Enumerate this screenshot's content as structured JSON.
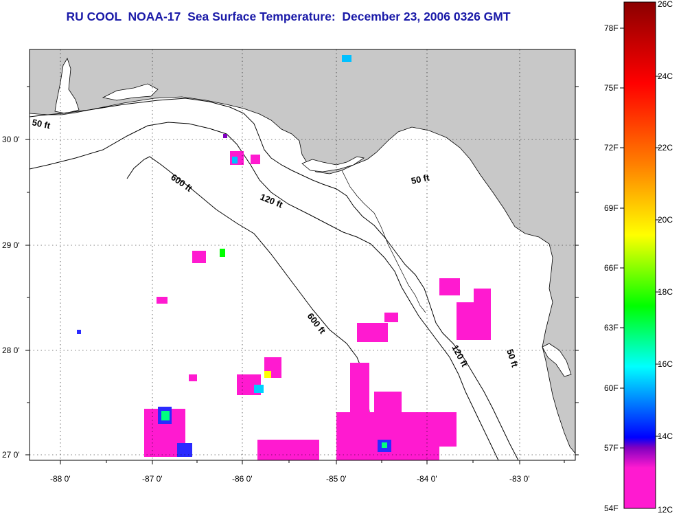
{
  "title": "RU COOL  NOAA-17  Sea Surface Temperature:  December 23, 2006 0326 GMT",
  "map": {
    "lon_ticks": [
      "-88 0'",
      "-87 0'",
      "-86 0'",
      "-85 0'",
      "-84 0'",
      "-83 0'"
    ],
    "lat_ticks": [
      "30 0'",
      "29 0'",
      "28 0'",
      "27 0'"
    ],
    "contour_labels": {
      "c50_west": "50 ft",
      "c50_east": "50 ft",
      "c50_south": "50 ft",
      "c120_north": "120 ft",
      "c120_south": "120 ft",
      "c600_north": "600 ft",
      "c600_south": "600 ft"
    },
    "land_color": "#c8c8c8",
    "water_color": "#ffffff"
  },
  "colorbar": {
    "fahrenheit_labels": [
      "78F",
      "75F",
      "72F",
      "69F",
      "66F",
      "63F",
      "60F",
      "57F",
      "54F"
    ],
    "celsius_labels": [
      "26C",
      "24C",
      "22C",
      "20C",
      "18C",
      "16C",
      "14C",
      "12C"
    ],
    "colors": [
      "#8b0000",
      "#ff0000",
      "#ff7f00",
      "#ffff00",
      "#00ff00",
      "#00ffff",
      "#0000ff",
      "#8000c0",
      "#ff1ad0"
    ]
  }
}
